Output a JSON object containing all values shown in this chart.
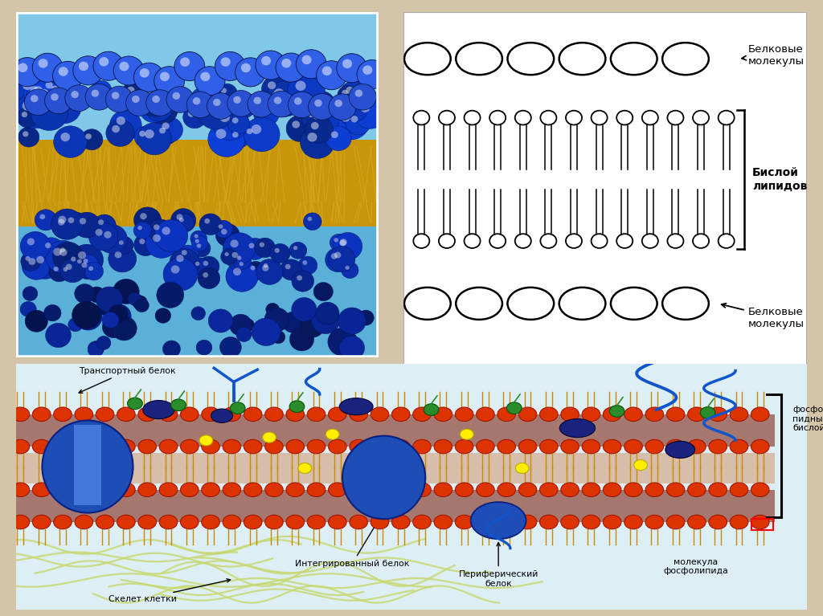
{
  "bg_color": "#d4c5a9",
  "diagram": {
    "label_bisloylipidov": "Бислой\nлипидов",
    "label_belkovye_top": "Белковые\nмолекулы",
    "label_belkovye_bottom": "Белковые\nмолекулы"
  },
  "bottom_labels": {
    "transportny_belok": "Транспортный белок",
    "skelet_kletki": "Скелет клетки",
    "integrirovannyy_belok": "Интегрированный белок",
    "periferichesky_belok": "Периферический\nбелок",
    "molekula_fosfolipida": "молекула\nфосфолипида",
    "fosfoli_pidny_bisloy": "фосфоли-\nпидный\nбислой"
  }
}
